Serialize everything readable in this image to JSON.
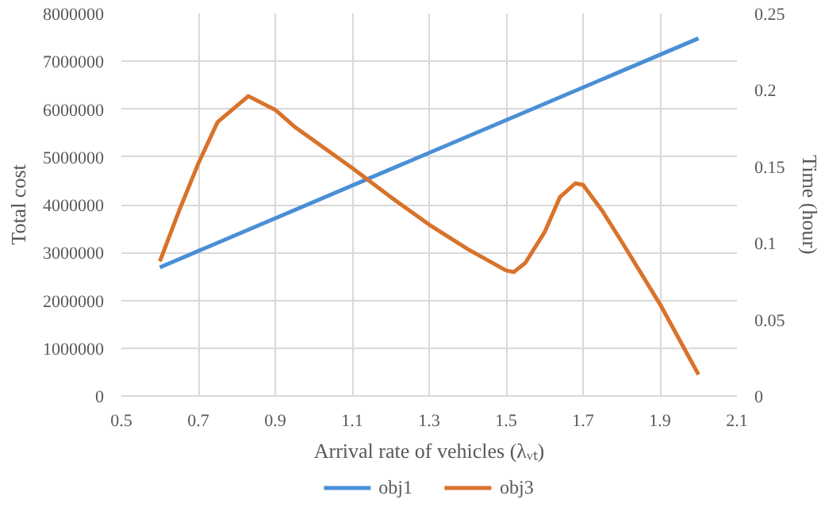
{
  "chart_data": {
    "type": "line",
    "xlabel": "Arrival rate of vehicles (λᵥₜ)",
    "ylabel": "Total cost",
    "y2label": "Time (hour)",
    "series": [
      {
        "name": "obj1",
        "color": "#4a8fd6",
        "x": [
          0.6,
          2.0
        ],
        "values": [
          2690000,
          7480000
        ]
      },
      {
        "name": "obj3",
        "color": "#d9722b",
        "axis": "y2",
        "x": [
          0.6,
          0.65,
          0.7,
          0.75,
          0.83,
          0.9,
          0.95,
          1.0,
          1.1,
          1.2,
          1.3,
          1.4,
          1.5,
          1.52,
          1.55,
          1.6,
          1.64,
          1.68,
          1.7,
          1.75,
          1.8,
          1.9,
          2.0
        ],
        "values": [
          0.088,
          0.121,
          0.152,
          0.179,
          0.196,
          0.187,
          0.176,
          0.167,
          0.149,
          0.13,
          0.112,
          0.096,
          0.082,
          0.081,
          0.087,
          0.107,
          0.13,
          0.139,
          0.138,
          0.121,
          0.101,
          0.06,
          0.014
        ]
      }
    ],
    "xlim": [
      0.5,
      2.1
    ],
    "xticks": [
      0.5,
      0.7,
      0.9,
      1.1,
      1.3,
      1.5,
      1.7,
      1.9,
      2.1
    ],
    "ylim": [
      0,
      8000000
    ],
    "yticks": [
      0,
      1000000,
      2000000,
      3000000,
      4000000,
      5000000,
      6000000,
      7000000,
      8000000
    ],
    "y2lim": [
      0,
      0.25
    ],
    "y2ticks": [
      0,
      0.05,
      0.1,
      0.15,
      0.2,
      0.25
    ],
    "grid": true,
    "legend": "bottom",
    "marker": "none",
    "line_style": "solid"
  }
}
